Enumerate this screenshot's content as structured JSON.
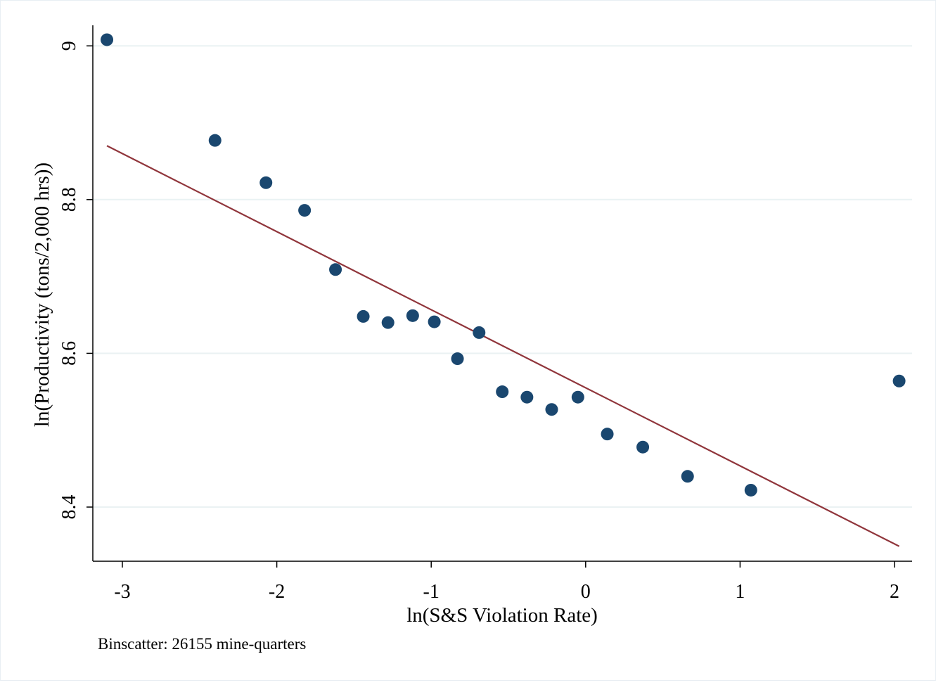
{
  "chart_data": {
    "type": "scatter",
    "title": "",
    "xlabel": "ln(S&S Violation Rate)",
    "ylabel": "ln(Productivity (tons/2,000 hrs))",
    "note": "Binscatter: 26155 mine-quarters",
    "xlim": [
      -3.2,
      2.1
    ],
    "ylim": [
      8.33,
      9.03
    ],
    "xticks": [
      -3,
      -2,
      -1,
      0,
      1,
      2
    ],
    "xtick_labels": [
      "-3",
      "-2",
      "-1",
      "0",
      "1",
      "2"
    ],
    "yticks": [
      8.4,
      8.6,
      8.8,
      9
    ],
    "ytick_labels": [
      "8.4",
      "8.6",
      "8.8",
      "9"
    ],
    "grid": "horizontal",
    "points": {
      "x": [
        -3.1,
        -2.4,
        -2.07,
        -1.82,
        -1.62,
        -1.44,
        -1.28,
        -1.12,
        -0.98,
        -0.83,
        -0.69,
        -0.54,
        -0.38,
        -0.22,
        -0.05,
        0.14,
        0.37,
        0.66,
        1.07,
        2.03
      ],
      "y": [
        9.008,
        8.877,
        8.822,
        8.786,
        8.709,
        8.648,
        8.64,
        8.649,
        8.641,
        8.593,
        8.627,
        8.55,
        8.543,
        8.527,
        8.543,
        8.495,
        8.478,
        8.44,
        8.422,
        8.564
      ]
    },
    "fit_line": {
      "x": [
        -3.1,
        2.03
      ],
      "y": [
        8.87,
        8.349
      ]
    },
    "colors": {
      "points": "#1a476f",
      "fit_line": "#90353b",
      "grid": "#eaf2f3",
      "axis": "#000000"
    }
  }
}
